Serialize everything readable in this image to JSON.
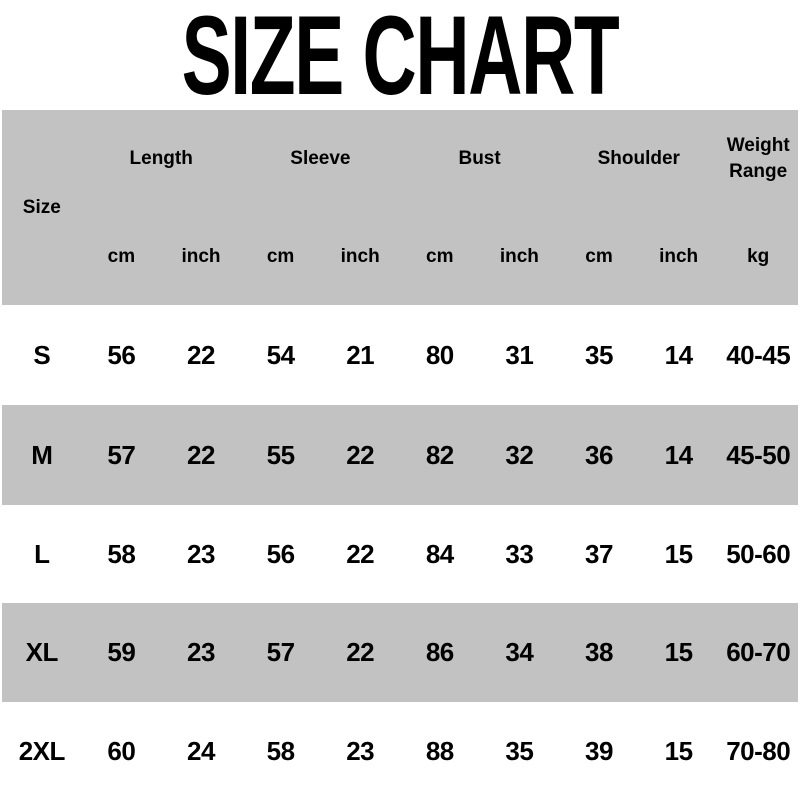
{
  "title": "SIZE CHART",
  "colors": {
    "row_gray": "#c2c2c2",
    "background": "#ffffff",
    "text": "#000000"
  },
  "table": {
    "size_label": "Size",
    "groups": {
      "length": "Length",
      "sleeve": "Sleeve",
      "bust": "Bust",
      "shoulder": "Shoulder",
      "weight_range": "Weight Range"
    },
    "units": [
      "cm",
      "inch",
      "cm",
      "inch",
      "cm",
      "inch",
      "cm",
      "inch",
      "kg"
    ],
    "rows": [
      {
        "size": "S",
        "values": [
          "56",
          "22",
          "54",
          "21",
          "80",
          "31",
          "35",
          "14",
          "40-45"
        ]
      },
      {
        "size": "M",
        "values": [
          "57",
          "22",
          "55",
          "22",
          "82",
          "32",
          "36",
          "14",
          "45-50"
        ]
      },
      {
        "size": "L",
        "values": [
          "58",
          "23",
          "56",
          "22",
          "84",
          "33",
          "37",
          "15",
          "50-60"
        ]
      },
      {
        "size": "XL",
        "values": [
          "59",
          "23",
          "57",
          "22",
          "86",
          "34",
          "38",
          "15",
          "60-70"
        ]
      },
      {
        "size": "2XL",
        "values": [
          "60",
          "24",
          "58",
          "23",
          "88",
          "35",
          "39",
          "15",
          "70-80"
        ]
      }
    ]
  },
  "chart_data": {
    "type": "table",
    "title": "SIZE CHART",
    "columns": [
      "Size",
      "Length cm",
      "Length inch",
      "Sleeve cm",
      "Sleeve inch",
      "Bust cm",
      "Bust inch",
      "Shoulder cm",
      "Shoulder inch",
      "Weight Range kg"
    ],
    "rows": [
      [
        "S",
        56,
        22,
        54,
        21,
        80,
        31,
        35,
        14,
        "40-45"
      ],
      [
        "M",
        57,
        22,
        55,
        22,
        82,
        32,
        36,
        14,
        "45-50"
      ],
      [
        "L",
        58,
        23,
        56,
        22,
        84,
        33,
        37,
        15,
        "50-60"
      ],
      [
        "XL",
        59,
        23,
        57,
        22,
        86,
        34,
        38,
        15,
        "60-70"
      ],
      [
        "2XL",
        60,
        24,
        58,
        23,
        88,
        35,
        39,
        15,
        "70-80"
      ]
    ],
    "layout": "alternating gray/white row bands, header band gray"
  }
}
